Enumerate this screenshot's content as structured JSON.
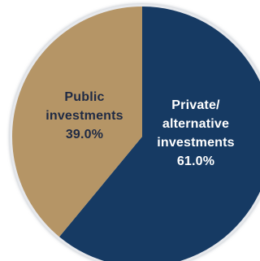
{
  "chart_data": {
    "type": "pie",
    "slices": [
      {
        "label_lines": [
          "Private/",
          "alternative",
          "investments"
        ],
        "value_label": "61.0%",
        "value": 61.0,
        "color": "#163a63",
        "text_color": "#ffffff"
      },
      {
        "label_lines": [
          "Public",
          "investments"
        ],
        "value_label": "39.0%",
        "value": 39.0,
        "color": "#b59566",
        "text_color": "#1f2a44"
      }
    ],
    "outline_color": "#e6e8ec"
  }
}
